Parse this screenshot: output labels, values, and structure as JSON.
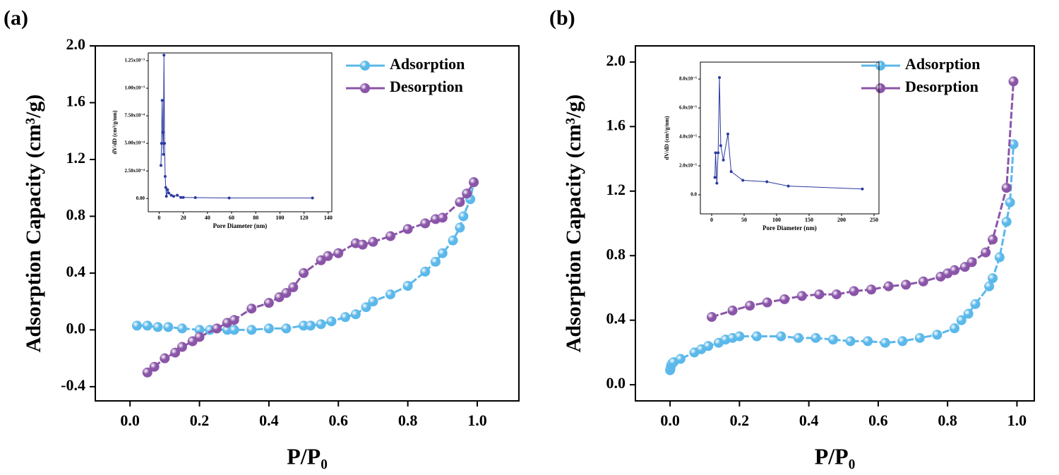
{
  "chart_data": [
    {
      "type": "line",
      "label": "(a)",
      "xlabel": "P/P₀",
      "ylabel": "Adsorption Capacity (cm³/g)",
      "xlim": [
        -0.1,
        1.12
      ],
      "ylim": [
        -0.5,
        2.0
      ],
      "xticks": [
        {
          "value": 0,
          "label": "0.0"
        },
        0.2,
        0.4,
        0.6,
        0.8,
        {
          "value": 1,
          "label": "1.0"
        }
      ],
      "yticks": [
        -0.4,
        {
          "value": 0,
          "label": "0.0"
        },
        0.4,
        0.8,
        1.2,
        1.6,
        {
          "value": 2,
          "label": "2.0"
        }
      ],
      "legend": "upper right",
      "series": [
        {
          "name": "Adsorption",
          "color": "#5bb8ea",
          "x": [
            0.02,
            0.05,
            0.08,
            0.11,
            0.15,
            0.2,
            0.23,
            0.28,
            0.3,
            0.35,
            0.4,
            0.45,
            0.5,
            0.52,
            0.55,
            0.58,
            0.62,
            0.65,
            0.68,
            0.7,
            0.75,
            0.8,
            0.85,
            0.88,
            0.9,
            0.93,
            0.95,
            0.96,
            0.98,
            0.99
          ],
          "values": [
            0.03,
            0.03,
            0.02,
            0.02,
            0.01,
            0.0,
            0.0,
            0.0,
            0.0,
            0.0,
            0.01,
            0.01,
            0.03,
            0.03,
            0.04,
            0.06,
            0.09,
            0.11,
            0.16,
            0.2,
            0.25,
            0.31,
            0.41,
            0.48,
            0.54,
            0.63,
            0.72,
            0.8,
            0.92,
            1.04
          ]
        },
        {
          "name": "Desorption",
          "color": "#8a55a8",
          "x": [
            0.05,
            0.07,
            0.1,
            0.13,
            0.15,
            0.18,
            0.2,
            0.25,
            0.28,
            0.3,
            0.35,
            0.4,
            0.43,
            0.45,
            0.47,
            0.5,
            0.55,
            0.57,
            0.6,
            0.65,
            0.67,
            0.7,
            0.75,
            0.8,
            0.85,
            0.88,
            0.9,
            0.95,
            0.97,
            0.99
          ],
          "values": [
            -0.3,
            -0.26,
            -0.2,
            -0.16,
            -0.12,
            -0.08,
            -0.05,
            0.01,
            0.05,
            0.07,
            0.15,
            0.19,
            0.23,
            0.26,
            0.3,
            0.4,
            0.49,
            0.52,
            0.54,
            0.61,
            0.6,
            0.62,
            0.66,
            0.71,
            0.75,
            0.78,
            0.79,
            0.9,
            0.96,
            1.04
          ]
        }
      ]
    },
    {
      "type": "line",
      "xlabel": "Pore Diameter (nm)",
      "ylabel": "dV/dD (cm³/g/nm)",
      "xlim": [
        -9,
        143
      ],
      "ylim": [
        -0.00012,
        0.00132
      ],
      "xticks": [
        0,
        20,
        40,
        60,
        80,
        100,
        120,
        140
      ],
      "yticks": [
        {
          "value": 0,
          "label": "0.00"
        },
        {
          "value": 0.00025,
          "label": "2.50x10⁻⁴"
        },
        {
          "value": 0.0005,
          "label": "5.00x10⁻⁴"
        },
        {
          "value": 0.00075,
          "label": "7.50x10⁻⁴"
        },
        {
          "value": 0.001,
          "label": "1.00x10⁻³"
        },
        {
          "value": 0.00125,
          "label": "1.25x10⁻³"
        }
      ],
      "series": [
        {
          "color": "#2b3a9f",
          "x": [
            1.5,
            2,
            2.5,
            3,
            3.5,
            4,
            4.5,
            5,
            5.5,
            6,
            7,
            8,
            10,
            12,
            15,
            18,
            20,
            30,
            58,
            127
          ],
          "values": [
            0.0003,
            0.0005,
            0.00089,
            0.0006,
            0.0004,
            0.0013,
            0.0005,
            0.0002,
            0.0001,
            2e-05,
            8e-05,
            5e-05,
            3e-05,
            2e-05,
            3e-05,
            1e-05,
            1e-05,
            8e-06,
            5e-06,
            5e-06
          ]
        }
      ]
    },
    {
      "type": "line",
      "label": "(b)",
      "xlabel": "P/P₀",
      "ylabel": "Adsorption Capacity (cm³/g)",
      "xlim": [
        -0.1,
        1.05
      ],
      "ylim": [
        -0.1,
        2.1
      ],
      "xticks": [
        {
          "value": 0,
          "label": "0.0"
        },
        0.2,
        0.4,
        0.6,
        0.8,
        {
          "value": 1,
          "label": "1.0"
        }
      ],
      "yticks": [
        {
          "value": 0,
          "label": "0.0"
        },
        0.4,
        0.8,
        1.2,
        1.6,
        {
          "value": 2,
          "label": "2.0"
        }
      ],
      "legend": "upper right",
      "series": [
        {
          "name": "Adsorption",
          "color": "#5bb8ea",
          "x": [
            0,
            0.001,
            0.003,
            0.005,
            0.01,
            0.03,
            0.07,
            0.09,
            0.11,
            0.14,
            0.16,
            0.18,
            0.2,
            0.25,
            0.32,
            0.37,
            0.42,
            0.47,
            0.52,
            0.57,
            0.62,
            0.67,
            0.72,
            0.77,
            0.82,
            0.84,
            0.86,
            0.88,
            0.92,
            0.93,
            0.95,
            0.97,
            0.98,
            0.99
          ],
          "values": [
            0.09,
            0.1,
            0.12,
            0.13,
            0.14,
            0.16,
            0.2,
            0.22,
            0.24,
            0.26,
            0.28,
            0.29,
            0.3,
            0.3,
            0.3,
            0.29,
            0.29,
            0.28,
            0.27,
            0.27,
            0.26,
            0.27,
            0.29,
            0.31,
            0.35,
            0.4,
            0.44,
            0.5,
            0.61,
            0.66,
            0.79,
            1.01,
            1.13,
            1.49
          ]
        },
        {
          "name": "Desorption",
          "color": "#8a55a8",
          "x": [
            0.12,
            0.18,
            0.23,
            0.28,
            0.33,
            0.38,
            0.43,
            0.48,
            0.53,
            0.58,
            0.63,
            0.68,
            0.73,
            0.78,
            0.8,
            0.82,
            0.85,
            0.87,
            0.91,
            0.93,
            0.97,
            0.99
          ],
          "values": [
            0.42,
            0.46,
            0.49,
            0.51,
            0.53,
            0.55,
            0.56,
            0.56,
            0.58,
            0.59,
            0.61,
            0.62,
            0.64,
            0.67,
            0.69,
            0.71,
            0.73,
            0.76,
            0.82,
            0.9,
            1.22,
            1.88
          ]
        }
      ]
    },
    {
      "type": "line",
      "xlabel": "Pore Diameter (nm)",
      "ylabel": "dV/dD (cm³/g/nm)",
      "xlim": [
        -17.4,
        257.6
      ],
      "ylim": [
        -1.32e-05,
        9.17e-05
      ],
      "xticks": [
        0,
        50,
        100,
        150,
        200,
        250
      ],
      "yticks": [
        {
          "value": 0,
          "label": "0.0"
        },
        {
          "value": 2e-05,
          "label": "2.0x10⁻⁵"
        },
        {
          "value": 4e-05,
          "label": "4.0x10⁻⁵"
        },
        {
          "value": 6e-05,
          "label": "6.0x10⁻⁵"
        },
        {
          "value": 8e-05,
          "label": "8.0x10⁻⁵"
        }
      ],
      "series": [
        {
          "color": "#2b3a9f",
          "x": [
            5,
            6,
            8,
            10,
            12,
            14,
            18,
            25,
            30,
            48,
            85,
            118,
            232
          ],
          "values": [
            1.2e-05,
            2.9e-05,
            8e-06,
            2.9e-05,
            8.1e-05,
            3.4e-05,
            2.4e-05,
            4.2e-05,
            1.6e-05,
            1e-05,
            9e-06,
            6e-06,
            4e-06
          ]
        }
      ]
    }
  ]
}
